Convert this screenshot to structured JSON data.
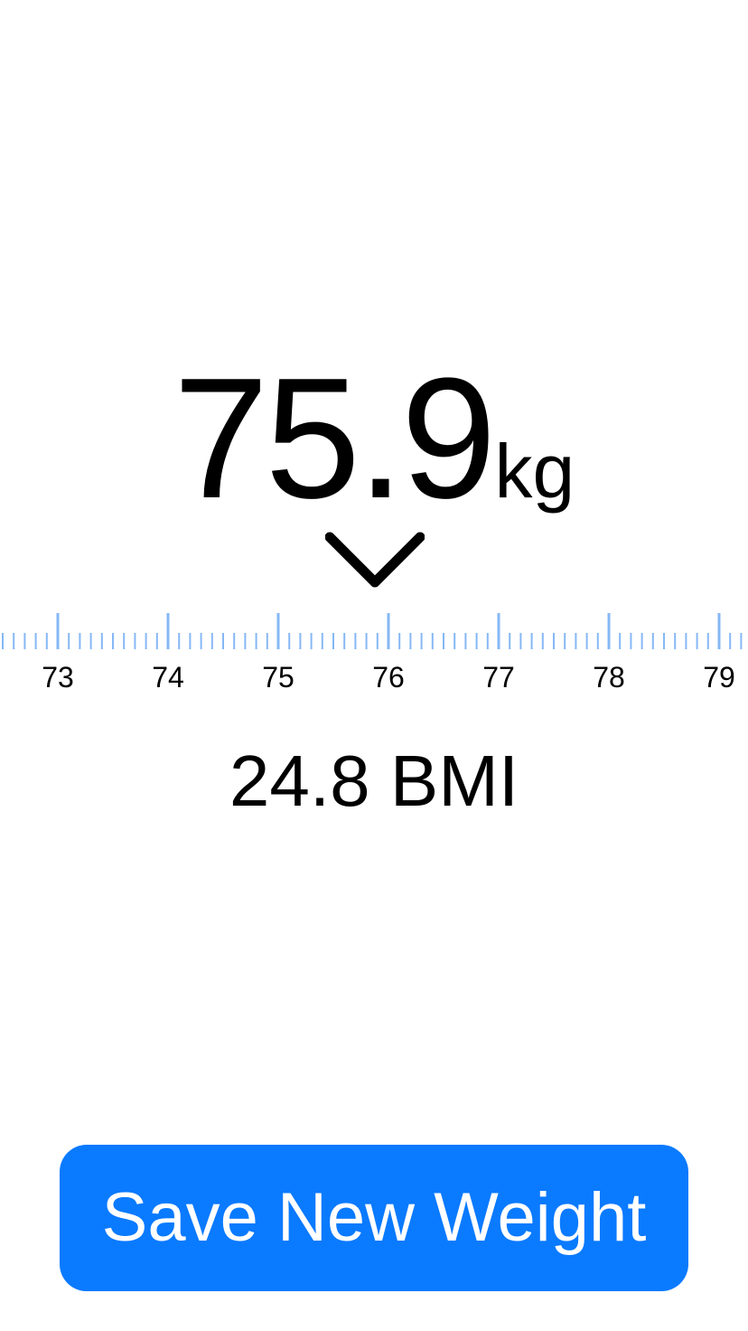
{
  "weight": {
    "value": "75.9",
    "unit": "kg",
    "current": 75.9
  },
  "ruler": {
    "labels": [
      "73",
      "74",
      "75",
      "76",
      "77",
      "78",
      "79"
    ],
    "tick_color": "#85b8f5"
  },
  "bmi": {
    "text": "24.8 BMI"
  },
  "save_button": {
    "label": "Save New Weight",
    "color": "#0a7aff"
  }
}
